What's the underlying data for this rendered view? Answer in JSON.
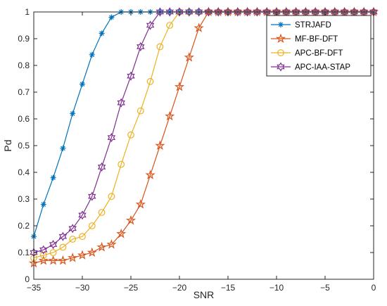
{
  "chart_data": {
    "type": "line",
    "xlabel": "SNR",
    "ylabel": "Pd",
    "xlim": [
      -35,
      0
    ],
    "ylim": [
      0,
      1
    ],
    "xticks": [
      "-35",
      "-30",
      "-25",
      "-20",
      "-15",
      "-10",
      "-5",
      "0"
    ],
    "yticks": [
      "0",
      "0.1",
      "0.2",
      "0.3",
      "0.4",
      "0.5",
      "0.6",
      "0.7",
      "0.8",
      "0.9",
      "1"
    ],
    "grid": false,
    "legend_position": "top-right",
    "x": [
      -35,
      -34,
      -33,
      -32,
      -31,
      -30,
      -29,
      -28,
      -27,
      -26,
      -25,
      -24,
      -23,
      -22,
      -21,
      -20,
      -19,
      -18,
      -17,
      -16,
      -15,
      -14,
      -13,
      -12,
      -11,
      -10,
      -9,
      -8,
      -7,
      -6,
      -5,
      -4,
      -3,
      -2,
      -1,
      0
    ],
    "series": [
      {
        "name": "STRJAFD",
        "color": "#0072BD",
        "marker": "asterisk",
        "values": [
          0.16,
          0.28,
          0.38,
          0.49,
          0.62,
          0.73,
          0.84,
          0.92,
          0.98,
          1,
          1,
          1,
          1,
          1,
          1,
          1,
          1,
          1,
          1,
          1,
          1,
          1,
          1,
          1,
          1,
          1,
          1,
          1,
          1,
          1,
          1,
          1,
          1,
          1,
          1,
          1
        ]
      },
      {
        "name": "MF-BF-DFT",
        "color": "#D95319",
        "marker": "pentagram",
        "values": [
          0.06,
          0.07,
          0.07,
          0.07,
          0.08,
          0.09,
          0.1,
          0.12,
          0.13,
          0.17,
          0.22,
          0.28,
          0.39,
          0.5,
          0.61,
          0.72,
          0.83,
          0.94,
          1,
          1,
          1,
          1,
          1,
          1,
          1,
          1,
          1,
          1,
          1,
          1,
          1,
          1,
          1,
          1,
          1,
          1
        ]
      },
      {
        "name": "APC-BF-DFT",
        "color": "#EDB120",
        "marker": "circle",
        "values": [
          0.08,
          0.09,
          0.1,
          0.12,
          0.15,
          0.16,
          0.2,
          0.25,
          0.31,
          0.43,
          0.54,
          0.63,
          0.74,
          0.87,
          0.95,
          1,
          1,
          1,
          1,
          1,
          1,
          1,
          1,
          1,
          1,
          1,
          1,
          1,
          1,
          1,
          1,
          1,
          1,
          1,
          1,
          1
        ]
      },
      {
        "name": "APC-IAA-STAP",
        "color": "#7E2F8E",
        "marker": "hexagram",
        "values": [
          0.1,
          0.11,
          0.13,
          0.16,
          0.19,
          0.24,
          0.31,
          0.42,
          0.53,
          0.66,
          0.76,
          0.87,
          0.95,
          1,
          1,
          1,
          1,
          1,
          1,
          1,
          1,
          1,
          1,
          1,
          1,
          1,
          1,
          1,
          1,
          1,
          1,
          1,
          1,
          1,
          1,
          1
        ]
      }
    ]
  }
}
